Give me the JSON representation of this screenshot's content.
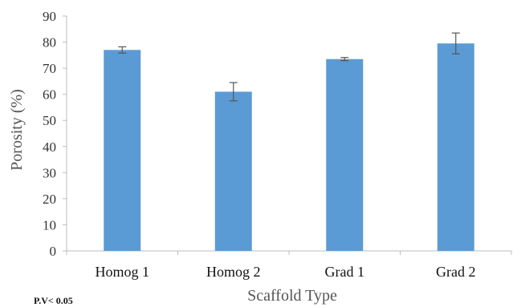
{
  "chart_data": {
    "type": "bar",
    "categories": [
      "Homog 1",
      "Homog 2",
      "Grad 1",
      "Grad 2"
    ],
    "values": [
      77,
      61,
      73.5,
      79.5
    ],
    "errors": [
      1.2,
      3.5,
      0.6,
      4
    ],
    "xlabel": "Scaffold Type",
    "ylabel": "Porosity (%)",
    "ylim": [
      0,
      90
    ],
    "yticks": [
      0,
      10,
      20,
      30,
      40,
      50,
      60,
      70,
      80,
      90
    ],
    "grid": false,
    "bar_color": "#5B9BD5",
    "error_color": "#555555",
    "note": "P.V< 0.05"
  }
}
